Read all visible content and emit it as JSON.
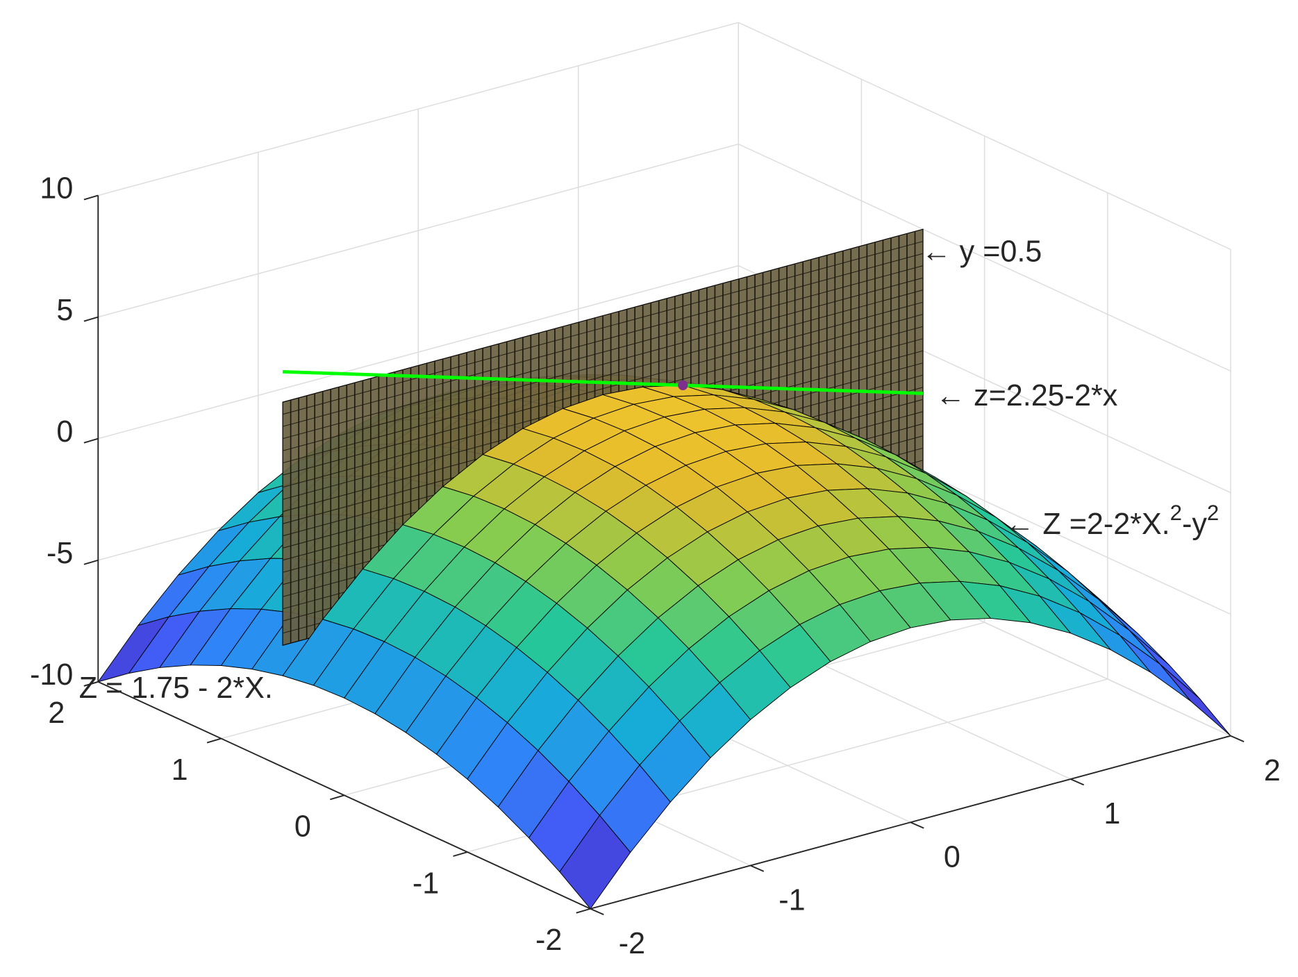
{
  "chart_data": {
    "type": "surface",
    "x": [
      -2,
      -1.75,
      -1.5,
      -1.25,
      -1,
      -0.75,
      -0.5,
      -0.25,
      0,
      0.25,
      0.5,
      0.75,
      1,
      1.25,
      1.5,
      1.75,
      2
    ],
    "y": [
      -2,
      -1.75,
      -1.5,
      -1.25,
      -1,
      -0.75,
      -0.5,
      -0.25,
      0,
      0.25,
      0.5,
      0.75,
      1,
      1.25,
      1.5,
      1.75,
      2
    ],
    "z": [
      [
        -10,
        -8.125,
        -6.5,
        -5.125,
        -4,
        -3.125,
        -2.5,
        -2.125,
        -2,
        -2.125,
        -2.5,
        -3.125,
        -4,
        -5.125,
        -6.5,
        -8.125,
        -10
      ],
      [
        -9.0625,
        -7.1875,
        -5.5625,
        -4.1875,
        -3.0625,
        -2.1875,
        -1.5625,
        -1.1875,
        -1.0625,
        -1.1875,
        -1.5625,
        -2.1875,
        -3.0625,
        -4.1875,
        -5.5625,
        -7.1875,
        -9.0625
      ],
      [
        -8.25,
        -6.375,
        -4.75,
        -3.375,
        -2.25,
        -1.375,
        -0.75,
        -0.375,
        -0.25,
        -0.375,
        -0.75,
        -1.375,
        -2.25,
        -3.375,
        -4.75,
        -6.375,
        -8.25
      ],
      [
        -7.5625,
        -5.6875,
        -4.0625,
        -2.6875,
        -1.5625,
        -0.6875,
        -0.0625,
        0.3125,
        0.4375,
        0.3125,
        -0.0625,
        -0.6875,
        -1.5625,
        -2.6875,
        -4.0625,
        -5.6875,
        -7.5625
      ],
      [
        -7,
        -5.125,
        -3.5,
        -2.125,
        -1,
        -0.125,
        0.5,
        0.875,
        1,
        0.875,
        0.5,
        -0.125,
        -1,
        -2.125,
        -3.5,
        -5.125,
        -7
      ],
      [
        -6.5625,
        -4.6875,
        -3.0625,
        -1.6875,
        -0.5625,
        0.3125,
        0.9375,
        1.3125,
        1.4375,
        1.3125,
        0.9375,
        0.3125,
        -0.5625,
        -1.6875,
        -3.0625,
        -4.6875,
        -6.5625
      ],
      [
        -6.25,
        -4.375,
        -2.75,
        -1.375,
        -0.25,
        0.625,
        1.25,
        1.625,
        1.75,
        1.625,
        1.25,
        0.625,
        -0.25,
        -1.375,
        -2.75,
        -4.375,
        -6.25
      ],
      [
        -6.0625,
        -4.1875,
        -2.5625,
        -1.1875,
        -0.0625,
        0.8125,
        1.4375,
        1.8125,
        1.9375,
        1.8125,
        1.4375,
        0.8125,
        -0.0625,
        -1.1875,
        -2.5625,
        -4.1875,
        -6.0625
      ],
      [
        -6,
        -4.125,
        -2.5,
        -1.125,
        0,
        0.875,
        1.5,
        1.875,
        2,
        1.875,
        1.5,
        0.875,
        0,
        -1.125,
        -2.5,
        -4.125,
        -6
      ],
      [
        -6.0625,
        -4.1875,
        -2.5625,
        -1.1875,
        -0.0625,
        0.8125,
        1.4375,
        1.8125,
        1.9375,
        1.8125,
        1.4375,
        0.8125,
        -0.0625,
        -1.1875,
        -2.5625,
        -4.1875,
        -6.0625
      ],
      [
        -6.25,
        -4.375,
        -2.75,
        -1.375,
        -0.25,
        0.625,
        1.25,
        1.625,
        1.75,
        1.625,
        1.25,
        0.625,
        -0.25,
        -1.375,
        -2.75,
        -4.375,
        -6.25
      ],
      [
        -6.5625,
        -4.6875,
        -3.0625,
        -1.6875,
        -0.5625,
        0.3125,
        0.9375,
        1.3125,
        1.4375,
        1.3125,
        0.9375,
        0.3125,
        -0.5625,
        -1.6875,
        -3.0625,
        -4.6875,
        -6.5625
      ],
      [
        -7,
        -5.125,
        -3.5,
        -2.125,
        -1,
        -0.125,
        0.5,
        0.875,
        1,
        0.875,
        0.5,
        -0.125,
        -1,
        -2.125,
        -3.5,
        -5.125,
        -7
      ],
      [
        -7.5625,
        -5.6875,
        -4.0625,
        -2.6875,
        -1.5625,
        -0.6875,
        -0.0625,
        0.3125,
        0.4375,
        0.3125,
        -0.0625,
        -0.6875,
        -1.5625,
        -2.6875,
        -4.0625,
        -5.6875,
        -7.5625
      ],
      [
        -8.25,
        -6.375,
        -4.75,
        -3.375,
        -2.25,
        -1.375,
        -0.75,
        -0.375,
        -0.25,
        -0.375,
        -0.75,
        -1.375,
        -2.25,
        -3.375,
        -4.75,
        -6.375,
        -8.25
      ],
      [
        -9.0625,
        -7.1875,
        -5.5625,
        -4.1875,
        -3.0625,
        -2.1875,
        -1.5625,
        -1.1875,
        -1.0625,
        -1.1875,
        -1.5625,
        -2.1875,
        -3.0625,
        -4.1875,
        -5.5625,
        -7.1875,
        -9.0625
      ],
      [
        -10,
        -8.125,
        -6.5,
        -5.125,
        -4,
        -3.125,
        -2.5,
        -2.125,
        -2,
        -2.125,
        -2.5,
        -3.125,
        -4,
        -5.125,
        -6.5,
        -8.125,
        -10
      ]
    ],
    "xlim": [
      -2,
      2
    ],
    "ylim": [
      -2,
      2
    ],
    "zlim": [
      -10,
      10
    ],
    "xticks": [
      -2,
      -1,
      0,
      1,
      2
    ],
    "yticks": [
      -2,
      -1,
      0,
      1,
      2
    ],
    "zticks": [
      -10,
      -5,
      0,
      5,
      10
    ],
    "grid": true,
    "colormap": "parula",
    "clim": [
      -10,
      5
    ],
    "edge_color": "#000000",
    "plane": {
      "y": 0.5,
      "xlim": [
        -2,
        2
      ],
      "zlim": [
        -5,
        5
      ],
      "color": "#6a6040"
    },
    "line": {
      "y": 0.5,
      "x": [
        -2,
        2
      ],
      "z": [
        6.25,
        -1.75
      ],
      "color": "#00ff00"
    },
    "point": {
      "x": 0.5,
      "y": 0.5,
      "z": 1.25,
      "color": "#7e2f8e"
    },
    "annotations": [
      {
        "text": "← y =0.5"
      },
      {
        "text": "← z=2.25-2*x"
      },
      {
        "parts": [
          "← Z =2-2*X.",
          "2",
          "-y",
          "2"
        ]
      },
      {
        "text": "Z = 1.75 - 2*X."
      }
    ]
  }
}
